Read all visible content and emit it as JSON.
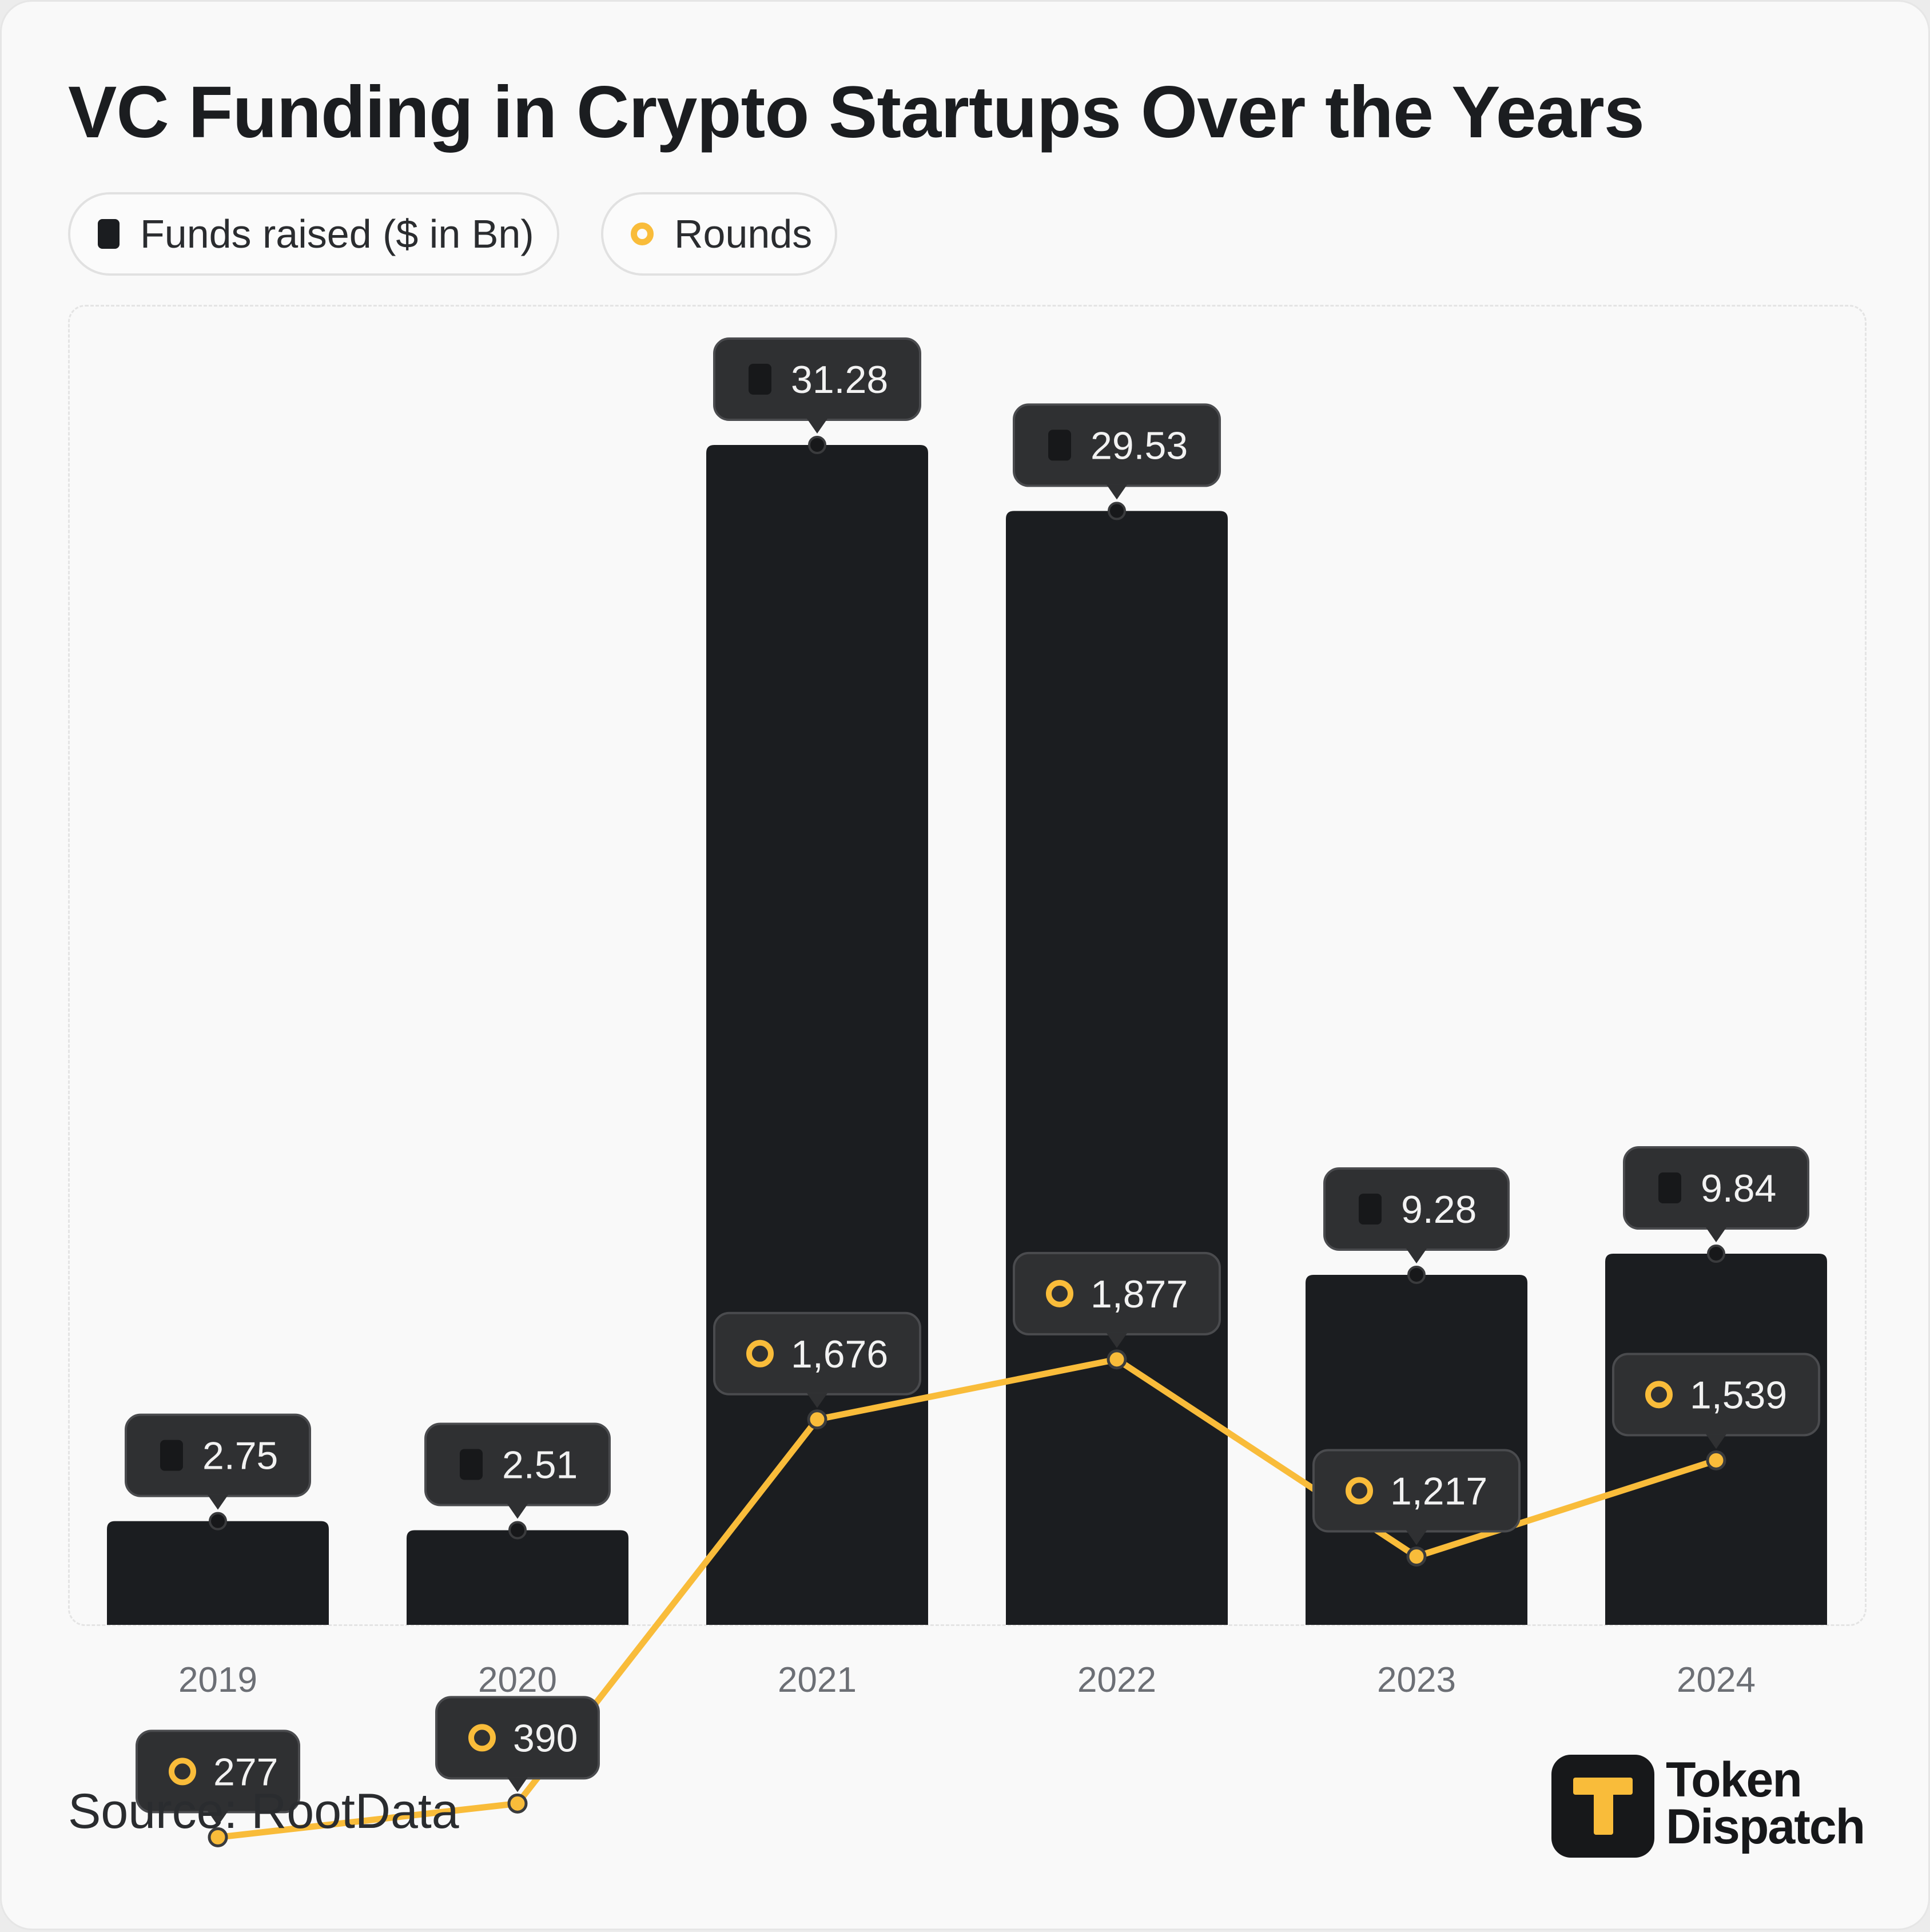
{
  "title": "VC Funding in Crypto Startups Over the Years",
  "legend": {
    "funds_label": "Funds raised ($ in Bn)",
    "rounds_label": "Rounds"
  },
  "source": "Source: RootData",
  "logo": {
    "line1": "Token",
    "line2": "Dispatch"
  },
  "colors": {
    "bar": "#1b1d20",
    "line": "#f9bc3a",
    "tooltip_bg": "#2f3032"
  },
  "chart_data": {
    "type": "bar",
    "title": "VC Funding in Crypto Startups Over the Years",
    "categories": [
      "2019",
      "2020",
      "2021",
      "2022",
      "2023",
      "2024"
    ],
    "series": [
      {
        "name": "Funds raised ($ in Bn)",
        "type": "bar",
        "values": [
          2.75,
          2.51,
          31.28,
          29.53,
          9.28,
          9.84
        ],
        "labels": [
          "2.75",
          "2.51",
          "31.28",
          "29.53",
          "9.28",
          "9.84"
        ]
      },
      {
        "name": "Rounds",
        "type": "line",
        "values": [
          277,
          390,
          1676,
          1877,
          1217,
          1539
        ],
        "labels": [
          "277",
          "390",
          "1,676",
          "1,877",
          "1,217",
          "1,539"
        ]
      }
    ],
    "legend_position": "top-left",
    "grid": false
  }
}
